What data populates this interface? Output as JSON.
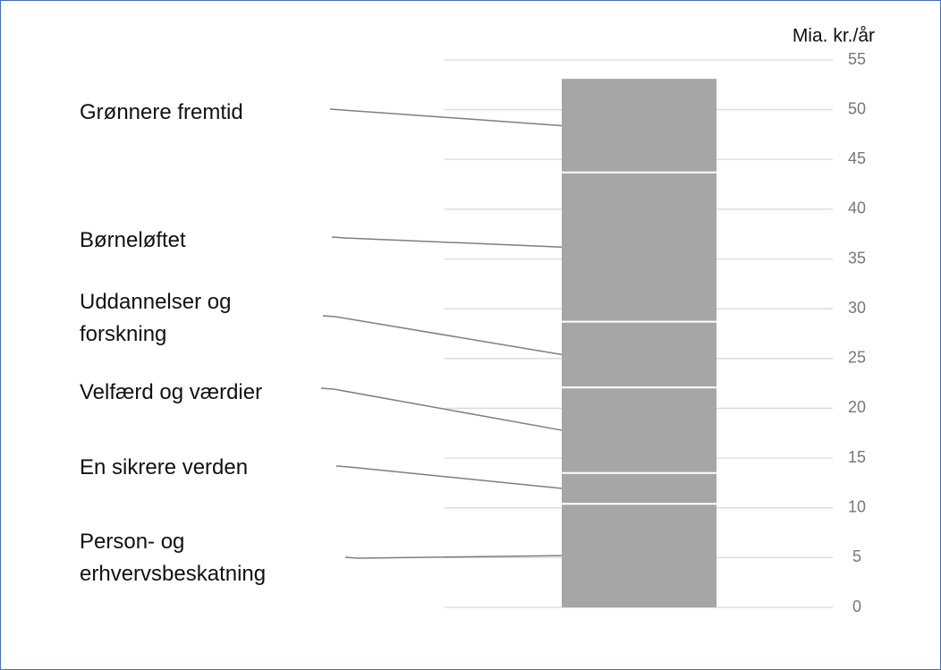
{
  "chart_data": {
    "type": "stacked_bar",
    "y_axis_label": "Mia. kr./år",
    "categories": [
      null
    ],
    "series": [
      {
        "name": "Person- og erhvervsbeskatning",
        "color": "#a6a6a6",
        "values": [
          10.4
        ]
      },
      {
        "name": "En sikrere verden",
        "color": "#a6a6a6",
        "values": [
          3.1
        ]
      },
      {
        "name": "Velfærd og værdier",
        "color": "#a6a6a6",
        "values": [
          8.6
        ]
      },
      {
        "name": "Uddannelser og forskning",
        "color": "#a6a6a6",
        "values": [
          6.6
        ]
      },
      {
        "name": "Børneløftet",
        "color": "#a6a6a6",
        "values": [
          15.0
        ]
      },
      {
        "name": "Grønnere fremtid",
        "color": "#a6a6a6",
        "values": [
          9.4
        ]
      }
    ],
    "ylim": [
      0,
      55
    ],
    "yticks": [
      0,
      5,
      10,
      15,
      20,
      25,
      30,
      35,
      40,
      45,
      50,
      55
    ],
    "grid": true
  }
}
